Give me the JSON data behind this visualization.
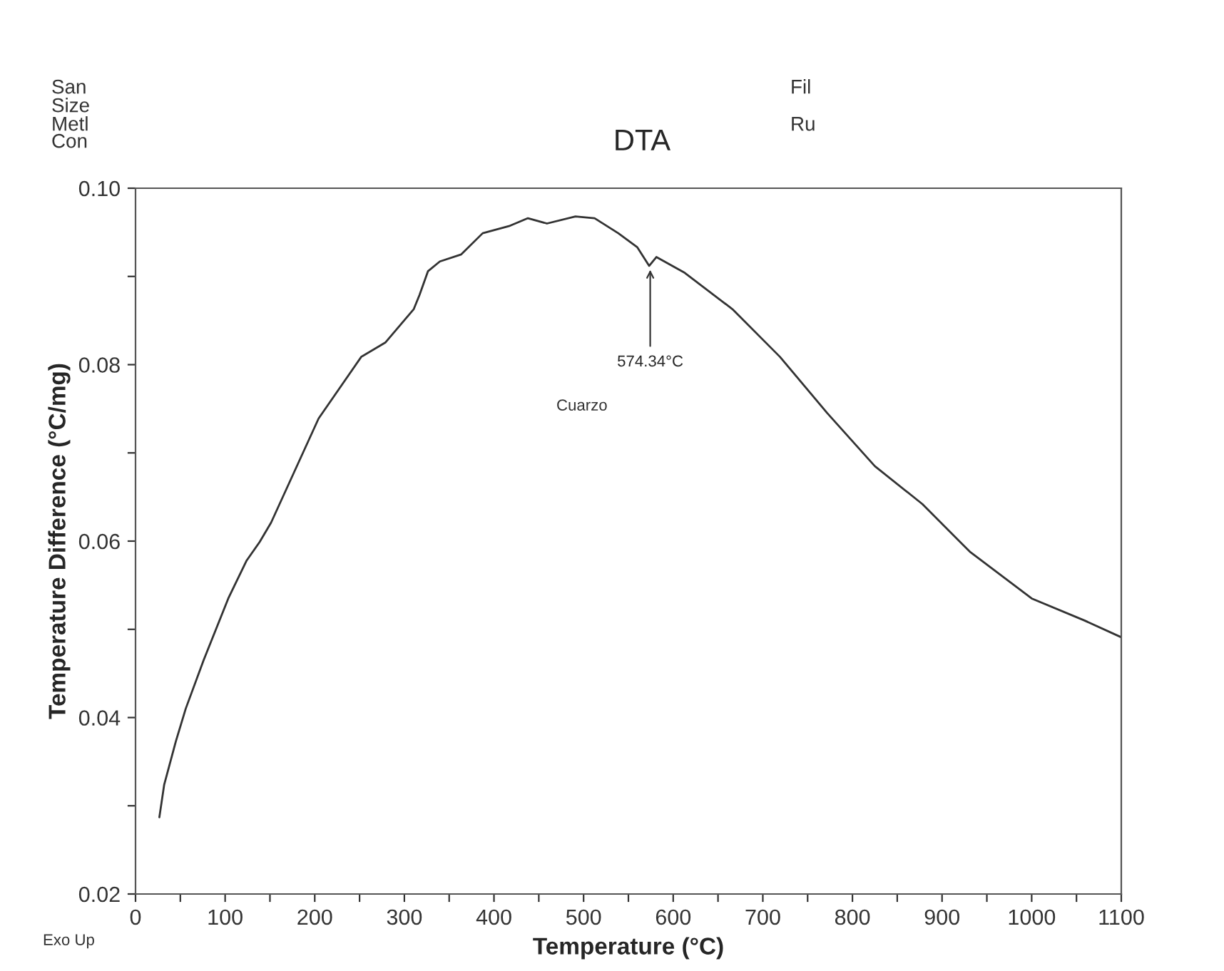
{
  "chart_data": {
    "type": "line",
    "title": "DTA",
    "xlabel": "Temperature (°C)",
    "ylabel": "Temperature Difference (°C/mg)",
    "x": [
      26.6,
      32,
      45,
      56,
      76,
      103.5,
      124,
      138.5,
      151.3,
      204.3,
      252,
      278.7,
      310.5,
      316.9,
      326.4,
      339.6,
      363.5,
      387.4,
      416.7,
      437.9,
      459.1,
      490.9,
      512.3,
      538.7,
      560,
      573.2,
      581.2,
      613,
      666,
      719,
      772,
      825,
      878,
      931,
      1000,
      1059,
      1100
    ],
    "series": [
      {
        "color": "#333333",
        "values": [
          0.0287,
          0.0324,
          0.0373,
          0.041,
          0.0465,
          0.0535,
          0.0578,
          0.0599,
          0.0621,
          0.0739,
          0.0809,
          0.0825,
          0.0863,
          0.0879,
          0.0906,
          0.0917,
          0.0925,
          0.0949,
          0.0957,
          0.0966,
          0.096,
          0.0968,
          0.0966,
          0.0949,
          0.0933,
          0.0912,
          0.0922,
          0.0904,
          0.0863,
          0.0809,
          0.0745,
          0.0685,
          0.0642,
          0.0588,
          0.0535,
          0.051,
          0.0491
        ]
      }
    ],
    "xlim": [
      0,
      1100
    ],
    "ylim": [
      0.02,
      0.1
    ],
    "xticks": [
      0,
      {
        "value": 50,
        "label": null
      },
      100,
      {
        "value": 150,
        "label": null
      },
      200,
      {
        "value": 250,
        "label": null
      },
      300,
      {
        "value": 350,
        "label": null
      },
      400,
      {
        "value": 450,
        "label": null
      },
      500,
      {
        "value": 550,
        "label": null
      },
      600,
      {
        "value": 650,
        "label": null
      },
      700,
      {
        "value": 750,
        "label": null
      },
      800,
      {
        "value": 850,
        "label": null
      },
      900,
      {
        "value": 950,
        "label": null
      },
      1000,
      {
        "value": 1050,
        "label": null
      },
      1100
    ],
    "yticks": [
      {
        "value": 0.02,
        "label": "0.02"
      },
      {
        "value": 0.03,
        "label": null
      },
      {
        "value": 0.04,
        "label": "0.04"
      },
      {
        "value": 0.05,
        "label": null
      },
      {
        "value": 0.06,
        "label": "0.06"
      },
      {
        "value": 0.07,
        "label": null
      },
      {
        "value": 0.08,
        "label": "0.08"
      },
      {
        "value": 0.09,
        "label": null
      },
      {
        "value": 0.1,
        "label": "0.10"
      }
    ],
    "grid": false,
    "marker": "none",
    "line_style": "solid",
    "annotations": [
      {
        "text": "574.34°C",
        "x": 574.34,
        "y": 0.0912
      },
      "Cuarzo",
      "Exo Up",
      "San",
      "Size",
      "Metl",
      "Con",
      "Fil",
      "Ru"
    ]
  }
}
